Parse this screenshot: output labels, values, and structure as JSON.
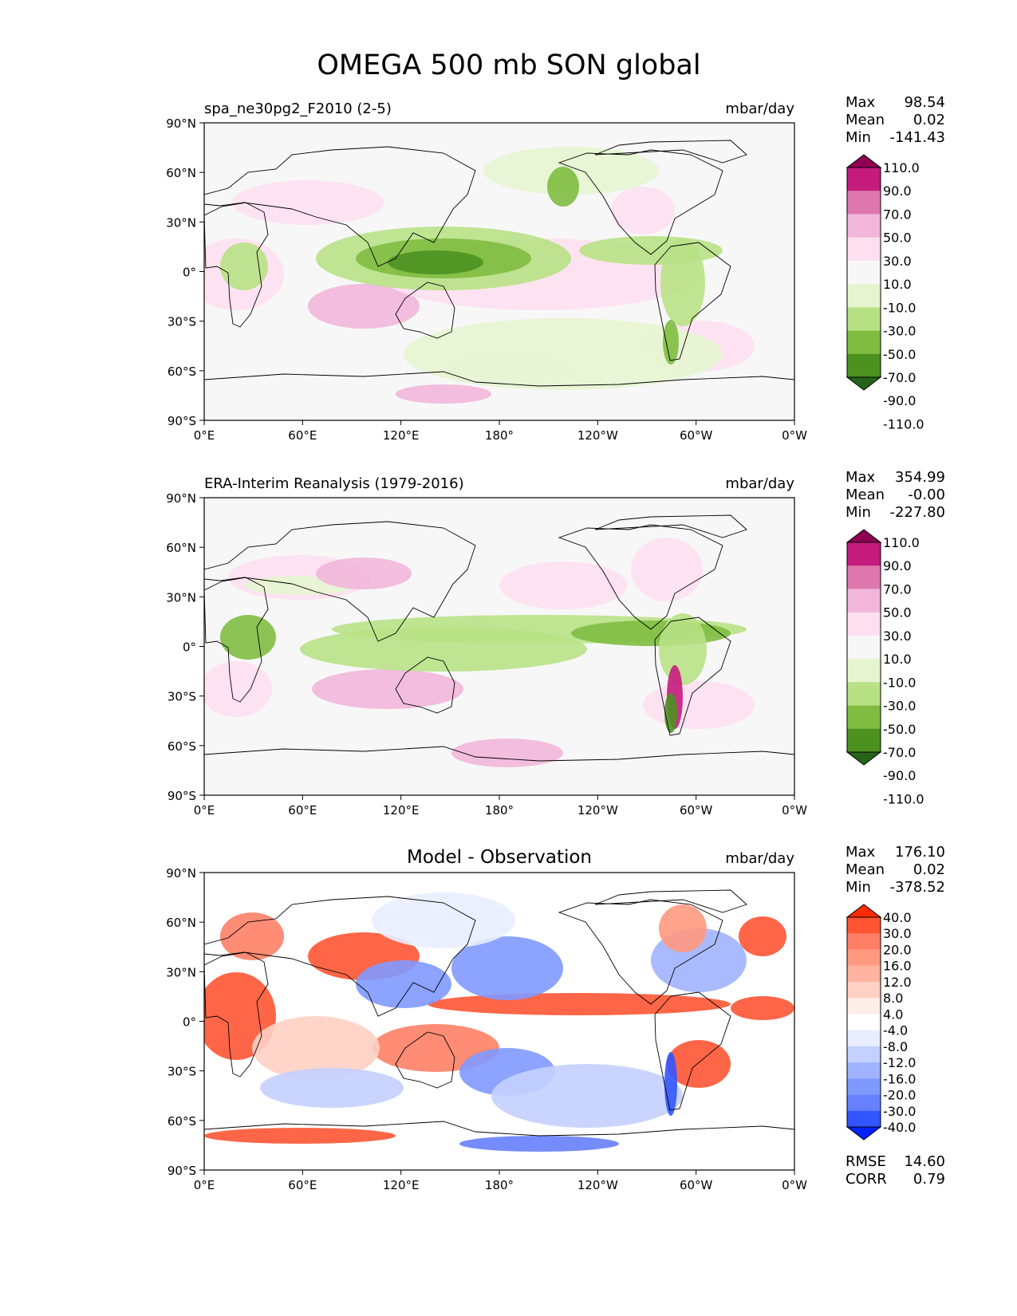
{
  "figure": {
    "title": "OMEGA 500 mb SON global",
    "units": "mbar/day",
    "lat_ticks": [
      "90°N",
      "60°N",
      "30°N",
      "0°",
      "30°S",
      "60°S",
      "90°S"
    ],
    "lon_ticks": [
      "0°E",
      "60°E",
      "120°E",
      "180°",
      "120°W",
      "60°W",
      "0°W"
    ]
  },
  "panels": [
    {
      "id": "model",
      "title": "spa_ne30pg2_F2010 (2-5)",
      "units": "mbar/day",
      "stats": [
        {
          "label": "Max",
          "value": "98.54"
        },
        {
          "label": "Mean",
          "value": "0.02"
        },
        {
          "label": "Min",
          "value": "-141.43"
        }
      ],
      "colorbar": {
        "labels": [
          "110.0",
          "90.0",
          "70.0",
          "50.0",
          "30.0",
          "10.0",
          "-10.0",
          "-30.0",
          "-50.0",
          "-70.0",
          "-90.0",
          "-110.0"
        ],
        "colors": [
          "#8e0152",
          "#c51b7d",
          "#de77ae",
          "#f1b6da",
          "#fde0ef",
          "#f7f7f7",
          "#e6f5d0",
          "#b8e186",
          "#7fbc41",
          "#4d9221",
          "#276419"
        ]
      }
    },
    {
      "id": "obs",
      "title": "ERA-Interim Reanalysis (1979-2016)",
      "units": "mbar/day",
      "stats": [
        {
          "label": "Max",
          "value": "354.99"
        },
        {
          "label": "Mean",
          "value": "-0.00"
        },
        {
          "label": "Min",
          "value": "-227.80"
        }
      ],
      "colorbar": {
        "labels": [
          "110.0",
          "90.0",
          "70.0",
          "50.0",
          "30.0",
          "10.0",
          "-10.0",
          "-30.0",
          "-50.0",
          "-70.0",
          "-90.0",
          "-110.0"
        ],
        "colors": [
          "#8e0152",
          "#c51b7d",
          "#de77ae",
          "#f1b6da",
          "#fde0ef",
          "#f7f7f7",
          "#e6f5d0",
          "#b8e186",
          "#7fbc41",
          "#4d9221",
          "#276419"
        ]
      }
    },
    {
      "id": "diff",
      "title": "Model - Observation",
      "units": "mbar/day",
      "stats": [
        {
          "label": "Max",
          "value": "176.10"
        },
        {
          "label": "Mean",
          "value": "0.02"
        },
        {
          "label": "Min",
          "value": "-378.52"
        }
      ],
      "extra_stats": [
        {
          "label": "RMSE",
          "value": "14.60"
        },
        {
          "label": "CORR",
          "value": "0.79"
        }
      ],
      "colorbar": {
        "labels": [
          "40.0",
          "30.0",
          "20.0",
          "16.0",
          "12.0",
          "8.0",
          "4.0",
          "-4.0",
          "-8.0",
          "-12.0",
          "-16.0",
          "-20.0",
          "-30.0",
          "-40.0"
        ],
        "colors": [
          "#ff2a00",
          "#ff5533",
          "#ff7f66",
          "#ff9980",
          "#ffb3a0",
          "#ffd0c4",
          "#ffeee8",
          "#ffffff",
          "#e8eeff",
          "#c4d0ff",
          "#a0b3ff",
          "#8099ff",
          "#6680ff",
          "#3355ff",
          "#0022ff"
        ]
      }
    }
  ]
}
